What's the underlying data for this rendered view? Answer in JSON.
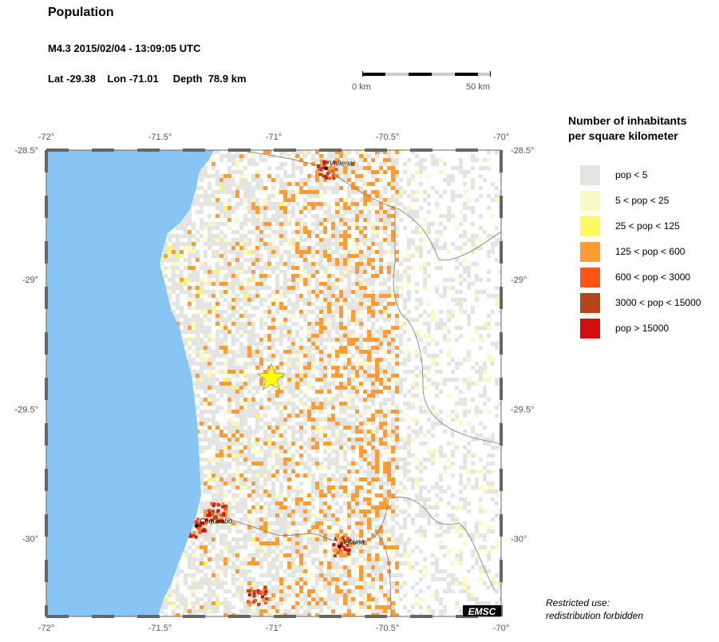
{
  "header": {
    "title": "Population",
    "event": "M4.3  2015/02/04 - 13:09:05 UTC",
    "location": "Lat -29.38    Lon -71.01     Depth  78.9 km"
  },
  "scale_bar": {
    "start_label": "0 km",
    "end_label": "50 km"
  },
  "map": {
    "lon_ticks": [
      "-72°",
      "-71.5°",
      "-71°",
      "-70.5°",
      "-70°"
    ],
    "lat_ticks": [
      "-28.5°",
      "-29°",
      "-29.5°",
      "-30°"
    ],
    "lon_range": [
      -72,
      -70
    ],
    "lat_range": [
      -28.5,
      -30.3
    ],
    "epicenter": {
      "lat": -29.38,
      "lon": -71.01,
      "icon": "star-icon",
      "color": "#ffff00"
    },
    "ocean_color": "#88c5f5",
    "cities": [
      {
        "name": "Vallenar",
        "lat": -28.57,
        "lon": -70.77
      },
      {
        "name": "Coquimbo",
        "lat": -29.95,
        "lon": -71.34
      },
      {
        "name": "Vicuna",
        "lat": -30.03,
        "lon": -70.71
      }
    ],
    "logo": "EMSC"
  },
  "legend": {
    "title_line1": "Number of inhabitants",
    "title_line2": "per square kilometer",
    "items": [
      {
        "label": "pop < 5",
        "color": "#e4e4e0"
      },
      {
        "label": "5 < pop < 25",
        "color": "#fbf8c4"
      },
      {
        "label": "25 < pop < 125",
        "color": "#fafa5e"
      },
      {
        "label": "125 < pop < 600",
        "color": "#fb9c36"
      },
      {
        "label": "600 < pop < 3000",
        "color": "#fd5418"
      },
      {
        "label": "3000 < pop < 15000",
        "color": "#b5441a"
      },
      {
        "label": "pop > 15000",
        "color": "#d60d0d"
      }
    ]
  },
  "notice": {
    "line1": "Restricted use:",
    "line2": "redistribution forbidden"
  }
}
